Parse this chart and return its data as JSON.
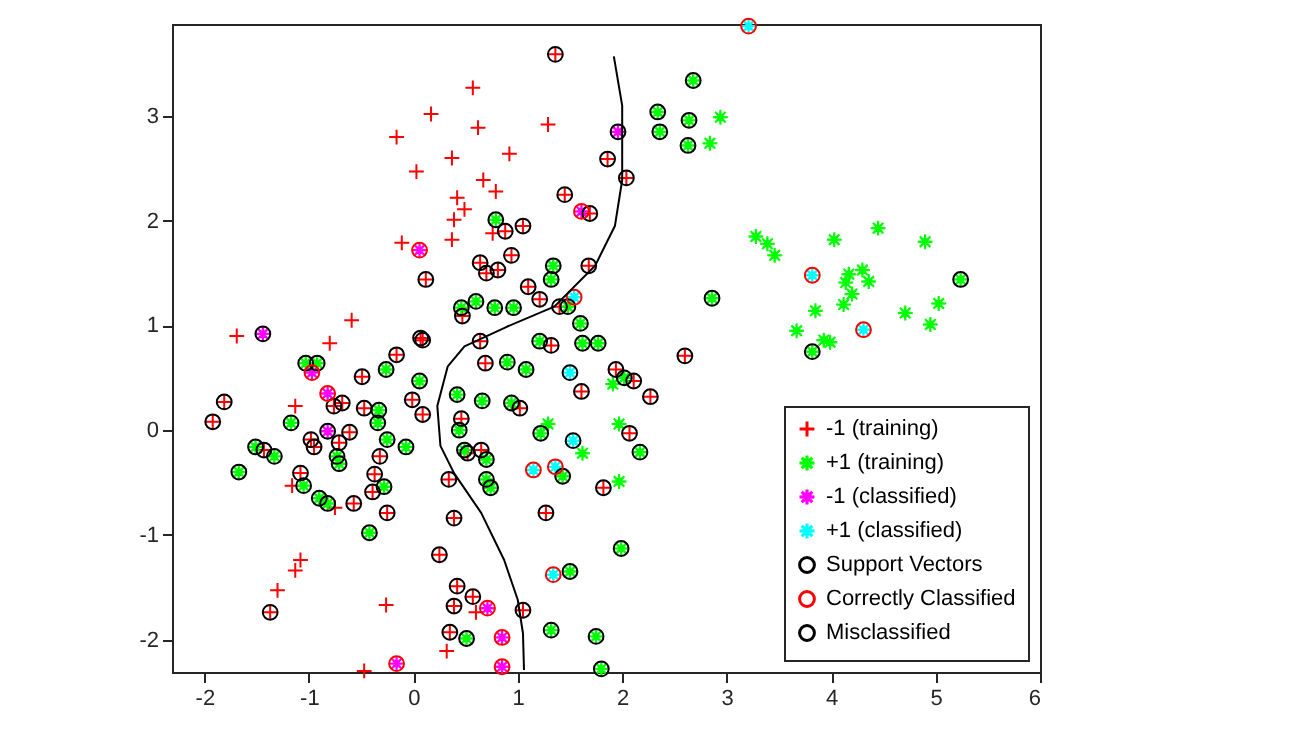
{
  "chart_data": {
    "type": "scatter",
    "xlim": [
      -2.31,
      6
    ],
    "ylim": [
      -2.31,
      3.88
    ],
    "xticks": [
      -2,
      -1,
      0,
      1,
      2,
      3,
      4,
      5,
      6
    ],
    "yticks": [
      -2,
      -1,
      0,
      1,
      2,
      3
    ],
    "grid": false,
    "legend": "bottom right",
    "series": [
      {
        "name": "-1 (training)",
        "color": "#ff0000",
        "marker": "cross",
        "x": [
          -0.16,
          0.17,
          0.03,
          0.37,
          0.42,
          0.39,
          0.37,
          -0.11,
          -0.59,
          -1.69,
          -0.8,
          0.57,
          0.62,
          1.29,
          0.92,
          0.67,
          0.79,
          0.49,
          0.76,
          -1.13,
          -1.16,
          -0.75,
          -1.08,
          -1.13,
          -1.3,
          -0.26,
          -0.47,
          0.32,
          0.6,
          0.12,
          0.09,
          1.36,
          1.86,
          2.04,
          1.45,
          1.69,
          0.88,
          1.05,
          0.64,
          0.94,
          0.7,
          0.81,
          1.68,
          1.1,
          1.21,
          1.4,
          0.64,
          0.47,
          -1.81,
          -1.92,
          -1.37,
          -0.16,
          0.07,
          -0.49,
          -0.47,
          -0.68,
          -0.61,
          -0.71,
          -0.98,
          -0.95,
          -1.43,
          -0.32,
          -0.01,
          0.09,
          -1.08,
          -0.37,
          -0.39,
          -0.57,
          0.39,
          0.25,
          0.39,
          0.35,
          -0.76,
          -0.25,
          0.69,
          1.32,
          1.94,
          2.11,
          1.61,
          2.27,
          2.6,
          1.02,
          0.46,
          0.65,
          0.52,
          2.07,
          0.34,
          1.82,
          1.27,
          0.42,
          0.57,
          1.05
        ],
        "values": [
          2.8,
          3.02,
          2.47,
          2.6,
          2.22,
          2.01,
          1.82,
          1.79,
          1.05,
          0.9,
          0.83,
          3.27,
          2.89,
          2.92,
          2.64,
          2.39,
          2.28,
          2.11,
          1.88,
          0.23,
          -0.53,
          -0.74,
          -1.24,
          -1.34,
          -1.53,
          -1.67,
          -2.3,
          -2.11,
          -1.74,
          1.44,
          0.86,
          3.59,
          2.59,
          2.41,
          2.25,
          2.07,
          1.9,
          1.95,
          1.6,
          1.67,
          1.5,
          1.53,
          1.57,
          1.37,
          1.25,
          1.18,
          0.85,
          1.09,
          0.27,
          0.08,
          -1.74,
          0.72,
          0.88,
          0.51,
          0.21,
          0.26,
          -0.02,
          -0.12,
          -0.09,
          -0.16,
          -0.19,
          -0.25,
          0.29,
          0.15,
          -0.41,
          -0.42,
          -0.59,
          -0.7,
          -0.84,
          -1.19,
          -1.68,
          -1.93,
          0.23,
          -0.79,
          0.64,
          0.81,
          0.58,
          0.47,
          0.37,
          0.32,
          0.71,
          0.21,
          0.11,
          -0.19,
          -0.22,
          -0.03,
          -0.47,
          -0.55,
          -0.79,
          -1.49,
          -1.59,
          -1.72
        ]
      },
      {
        "name": "+1 (training)",
        "color": "#00ff00",
        "marker": "star",
        "x": [
          2.68,
          2.34,
          2.36,
          2.64,
          2.63,
          0.79,
          0.6,
          0.46,
          0.96,
          1.34,
          1.32,
          1.6,
          1.48,
          1.21,
          1.62,
          1.77,
          2.86,
          0.78,
          5.24,
          3.82,
          -1.03,
          -0.92,
          -0.26,
          0.06,
          -1.17,
          -0.33,
          -0.34,
          -0.07,
          -0.25,
          -1.51,
          -1.33,
          -1.67,
          -0.73,
          -0.71,
          -1.05,
          -0.9,
          -0.82,
          -0.28,
          -0.42,
          0.9,
          1.08,
          2.02,
          0.42,
          0.66,
          0.94,
          0.44,
          0.49,
          0.7,
          1.22,
          1.43,
          0.7,
          0.74,
          2.17,
          1.99,
          1.5,
          1.32,
          1.75,
          1.8,
          0.51,
          2.94,
          2.84,
          3.28,
          3.39,
          3.46,
          4.03,
          4.45,
          4.9,
          4.17,
          4.3,
          4.14,
          4.36,
          4.2,
          4.12,
          3.85,
          3.67,
          3.93,
          3.99,
          4.71,
          5.03,
          4.95,
          1.91,
          1.29,
          1.97,
          1.62,
          1.97
        ],
        "values": [
          3.34,
          3.04,
          2.85,
          2.96,
          2.72,
          2.01,
          1.23,
          1.17,
          1.17,
          1.57,
          1.44,
          1.02,
          1.18,
          0.85,
          0.83,
          0.83,
          1.26,
          1.17,
          1.44,
          0.75,
          0.64,
          0.64,
          0.58,
          0.47,
          0.07,
          0.19,
          0.07,
          -0.16,
          -0.09,
          -0.16,
          -0.25,
          -0.4,
          -0.25,
          -0.32,
          -0.53,
          -0.65,
          -0.7,
          -0.54,
          -0.98,
          0.65,
          0.58,
          0.5,
          0.34,
          0.28,
          0.26,
          0.0,
          -0.19,
          -0.28,
          -0.03,
          -0.44,
          -0.47,
          -0.55,
          -0.21,
          -1.13,
          -1.35,
          -1.91,
          -1.97,
          -2.28,
          -1.99,
          2.99,
          2.74,
          1.85,
          1.78,
          1.67,
          1.82,
          1.93,
          1.8,
          1.49,
          1.53,
          1.41,
          1.42,
          1.3,
          1.2,
          1.14,
          0.95,
          0.86,
          0.84,
          1.12,
          1.21,
          1.01,
          0.44,
          0.06,
          0.06,
          -0.22,
          -0.49
        ]
      },
      {
        "name": "-1 (classified)",
        "color": "#ff00ff",
        "marker": "star",
        "x": [
          0.06,
          -1.44,
          1.61,
          1.96,
          -0.97,
          -0.82,
          -0.82,
          -0.16,
          0.71,
          0.85,
          0.85
        ],
        "values": [
          1.72,
          0.92,
          2.09,
          2.85,
          0.55,
          0.35,
          -0.01,
          -2.23,
          -1.7,
          -1.98,
          -2.26
        ]
      },
      {
        "name": "+1 (classified)",
        "color": "#00ffff",
        "marker": "star",
        "x": [
          1.54,
          3.21,
          3.82,
          4.31,
          1.5,
          1.53,
          1.15,
          1.36,
          1.34
        ],
        "values": [
          1.27,
          3.86,
          1.48,
          0.96,
          0.55,
          -0.1,
          -0.38,
          -0.35,
          -1.38
        ]
      },
      {
        "name": "Support Vectors",
        "color": "#000000",
        "marker": "circle",
        "x": [
          0.12,
          0.09,
          1.36,
          1.86,
          2.04,
          1.45,
          1.69,
          0.88,
          1.05,
          0.64,
          0.94,
          0.7,
          0.81,
          1.68,
          1.1,
          1.21,
          1.4,
          0.64,
          0.47,
          -1.81,
          -1.92,
          -1.37,
          -0.16,
          0.07,
          -0.49,
          -0.47,
          -0.68,
          -0.61,
          -0.71,
          -0.98,
          -0.95,
          -1.43,
          -0.32,
          -0.01,
          0.09,
          -1.08,
          -0.37,
          -0.39,
          -0.57,
          0.39,
          0.25,
          0.39,
          0.35,
          -0.76,
          -0.25,
          0.69,
          1.32,
          1.94,
          2.11,
          1.61,
          2.27,
          2.6,
          1.02,
          0.46,
          0.65,
          0.52,
          2.07,
          0.34,
          1.82,
          1.27,
          0.42,
          0.57,
          1.05,
          2.68,
          2.34,
          2.36,
          2.64,
          2.63,
          0.79,
          0.6,
          0.46,
          0.96,
          1.34,
          1.32,
          1.6,
          1.48,
          1.21,
          1.62,
          1.77,
          2.86,
          0.78,
          5.24,
          3.82,
          -1.03,
          -0.92,
          -0.26,
          0.06,
          -1.17,
          -0.33,
          -0.34,
          -0.07,
          -0.25,
          -1.51,
          -1.33,
          -1.67,
          -0.73,
          -0.71,
          -1.05,
          -0.9,
          -0.82,
          -0.28,
          -0.42,
          0.9,
          1.08,
          2.02,
          0.42,
          0.66,
          0.94,
          0.44,
          0.49,
          0.7,
          1.22,
          1.43,
          0.7,
          0.74,
          2.17,
          1.99,
          1.5,
          1.32,
          1.75,
          1.8,
          0.51
        ],
        "values": [
          1.44,
          0.86,
          3.59,
          2.59,
          2.41,
          2.25,
          2.07,
          1.9,
          1.95,
          1.6,
          1.67,
          1.5,
          1.53,
          1.57,
          1.37,
          1.25,
          1.18,
          0.85,
          1.09,
          0.27,
          0.08,
          -1.74,
          0.72,
          0.88,
          0.51,
          0.21,
          0.26,
          -0.02,
          -0.12,
          -0.09,
          -0.16,
          -0.19,
          -0.25,
          0.29,
          0.15,
          -0.41,
          -0.42,
          -0.59,
          -0.7,
          -0.84,
          -1.19,
          -1.68,
          -1.93,
          0.23,
          -0.79,
          0.64,
          0.81,
          0.58,
          0.47,
          0.37,
          0.32,
          0.71,
          0.21,
          0.11,
          -0.19,
          -0.22,
          -0.03,
          -0.47,
          -0.55,
          -0.79,
          -1.49,
          -1.59,
          -1.72,
          3.34,
          3.04,
          2.85,
          2.96,
          2.72,
          2.01,
          1.23,
          1.17,
          1.17,
          1.57,
          1.44,
          1.02,
          1.18,
          0.85,
          0.83,
          0.83,
          1.26,
          1.17,
          1.44,
          0.75,
          0.64,
          0.64,
          0.58,
          0.47,
          0.07,
          0.19,
          0.07,
          -0.16,
          -0.09,
          -0.16,
          -0.25,
          -0.4,
          -0.25,
          -0.32,
          -0.53,
          -0.65,
          -0.7,
          -0.54,
          -0.98,
          0.65,
          0.58,
          0.5,
          0.34,
          0.28,
          0.26,
          0.0,
          -0.19,
          -0.28,
          -0.03,
          -0.44,
          -0.47,
          -0.55,
          -0.21,
          -1.13,
          -1.35,
          -1.91,
          -1.97,
          -2.28,
          -1.99
        ]
      },
      {
        "name": "Correctly Classified",
        "color": "#ff0000",
        "marker": "circle",
        "x": [
          0.06,
          1.61,
          -0.97,
          -0.82,
          -0.16,
          0.71,
          0.85,
          0.85,
          1.54,
          3.21,
          3.82,
          4.31,
          1.15,
          1.36,
          1.34
        ],
        "values": [
          1.72,
          2.09,
          0.55,
          0.35,
          -2.23,
          -1.7,
          -1.98,
          -2.26,
          1.27,
          3.86,
          1.48,
          0.96,
          -0.38,
          -0.35,
          -1.38
        ]
      },
      {
        "name": "Misclassified",
        "color": "#000000",
        "marker": "circle",
        "x": [
          -1.44,
          1.96,
          -0.82,
          1.5,
          1.53
        ],
        "values": [
          0.92,
          2.85,
          -0.01,
          0.55,
          -0.1
        ]
      },
      {
        "type": "line",
        "color": "#000000",
        "x": [
          1.92,
          2.0,
          2.0,
          1.93,
          1.74,
          1.35,
          0.9,
          0.49,
          0.33,
          0.23,
          0.26,
          0.39,
          0.65,
          0.87,
          1.0,
          1.05,
          1.06
        ],
        "values": [
          3.57,
          3.1,
          2.39,
          1.95,
          1.57,
          1.18,
          0.99,
          0.8,
          0.61,
          0.23,
          -0.15,
          -0.41,
          -0.79,
          -1.24,
          -1.62,
          -1.94,
          -2.29
        ]
      }
    ]
  }
}
